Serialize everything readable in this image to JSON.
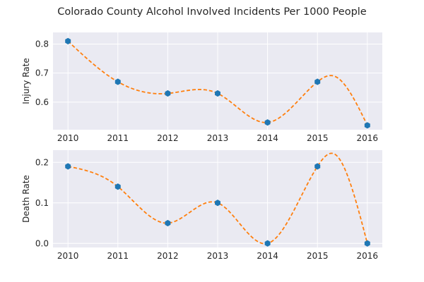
{
  "title": "Colorado County Alcohol Involved Incidents Per 1000 People",
  "colors": {
    "marker": "#1f77b4",
    "fit": "#ff7f0e",
    "background": "#eaeaf2",
    "grid": "#ffffff"
  },
  "chart_data": [
    {
      "type": "line",
      "title": "",
      "xlabel": "",
      "ylabel": "Injury Rate",
      "x": [
        2010,
        2011,
        2012,
        2013,
        2014,
        2015,
        2016
      ],
      "values": [
        0.81,
        0.67,
        0.63,
        0.63,
        0.53,
        0.67,
        0.52
      ],
      "yticks": [
        0.6,
        0.7,
        0.8
      ],
      "ytick_labels": [
        "0.6",
        "0.7",
        "0.8"
      ],
      "ylim": [
        0.505,
        0.84
      ],
      "xlim": [
        2009.7,
        2016.3
      ],
      "grid": true,
      "series_style": "hexagon markers with dashed smooth fit curve",
      "fit_peak": {
        "x": 2015.33,
        "y": 0.69
      }
    },
    {
      "type": "line",
      "title": "",
      "xlabel": "",
      "ylabel": "Death Rate",
      "x": [
        2010,
        2011,
        2012,
        2013,
        2014,
        2015,
        2016
      ],
      "values": [
        0.19,
        0.14,
        0.05,
        0.1,
        0.0,
        0.19,
        0.0
      ],
      "yticks": [
        0.0,
        0.1,
        0.2
      ],
      "ytick_labels": [
        "0.0",
        "0.1",
        "0.2"
      ],
      "ylim": [
        -0.01,
        0.23
      ],
      "xlim": [
        2009.7,
        2016.3
      ],
      "grid": true,
      "series_style": "hexagon markers with dashed smooth fit curve",
      "fit_peak": {
        "x": 2015.35,
        "y": 0.22
      }
    }
  ]
}
